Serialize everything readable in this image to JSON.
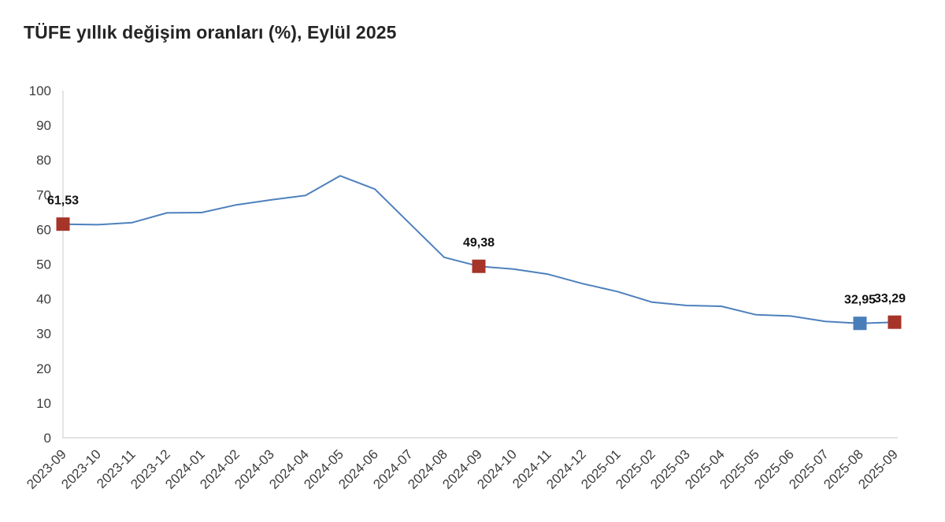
{
  "header": {
    "title": "TÜFE yıllık değişim oranları (%), Eylül 2025"
  },
  "chart_data": {
    "type": "line",
    "title": "TÜFE yıllık değişim oranları (%), Eylül 2025",
    "xlabel": "",
    "ylabel": "",
    "ylim": [
      0,
      100
    ],
    "y_ticks": [
      0,
      10,
      20,
      30,
      40,
      50,
      60,
      70,
      80,
      90,
      100
    ],
    "grid": false,
    "legend_position": "none",
    "x_tick_rotation_deg": -45,
    "categories": [
      "2023-09",
      "2023-10",
      "2023-11",
      "2023-12",
      "2024-01",
      "2024-02",
      "2024-03",
      "2024-04",
      "2024-05",
      "2024-06",
      "2024-07",
      "2024-08",
      "2024-09",
      "2024-10",
      "2024-11",
      "2024-12",
      "2025-01",
      "2025-02",
      "2025-03",
      "2025-04",
      "2025-05",
      "2025-06",
      "2025-07",
      "2025-08",
      "2025-09"
    ],
    "series": [
      {
        "name": "TÜFE yıllık değişim oranı (%)",
        "values": [
          61.53,
          61.36,
          61.98,
          64.77,
          64.86,
          67.07,
          68.5,
          69.8,
          75.45,
          71.6,
          61.78,
          51.97,
          49.38,
          48.58,
          47.09,
          44.38,
          42.12,
          39.05,
          38.1,
          37.86,
          35.41,
          35.05,
          33.52,
          32.95,
          33.29
        ]
      }
    ],
    "annotated_points": [
      {
        "category": "2023-09",
        "value": 61.53,
        "label": "61,53",
        "marker_color": "#a63428"
      },
      {
        "category": "2024-09",
        "value": 49.38,
        "label": "49,38",
        "marker_color": "#a63428"
      },
      {
        "category": "2025-08",
        "value": 32.95,
        "label": "32,95",
        "marker_color": "#4a7eb9"
      },
      {
        "category": "2025-09",
        "value": 33.29,
        "label": "33,29",
        "marker_color": "#a63428"
      }
    ],
    "colors": {
      "line": "#4e80bd",
      "axis": "#d9d9d9",
      "tick_label": "#3d3d3d",
      "data_label": "#101010",
      "highlight_red": "#a63428",
      "highlight_blue": "#4a7eb9",
      "background": "#ffffff"
    }
  }
}
